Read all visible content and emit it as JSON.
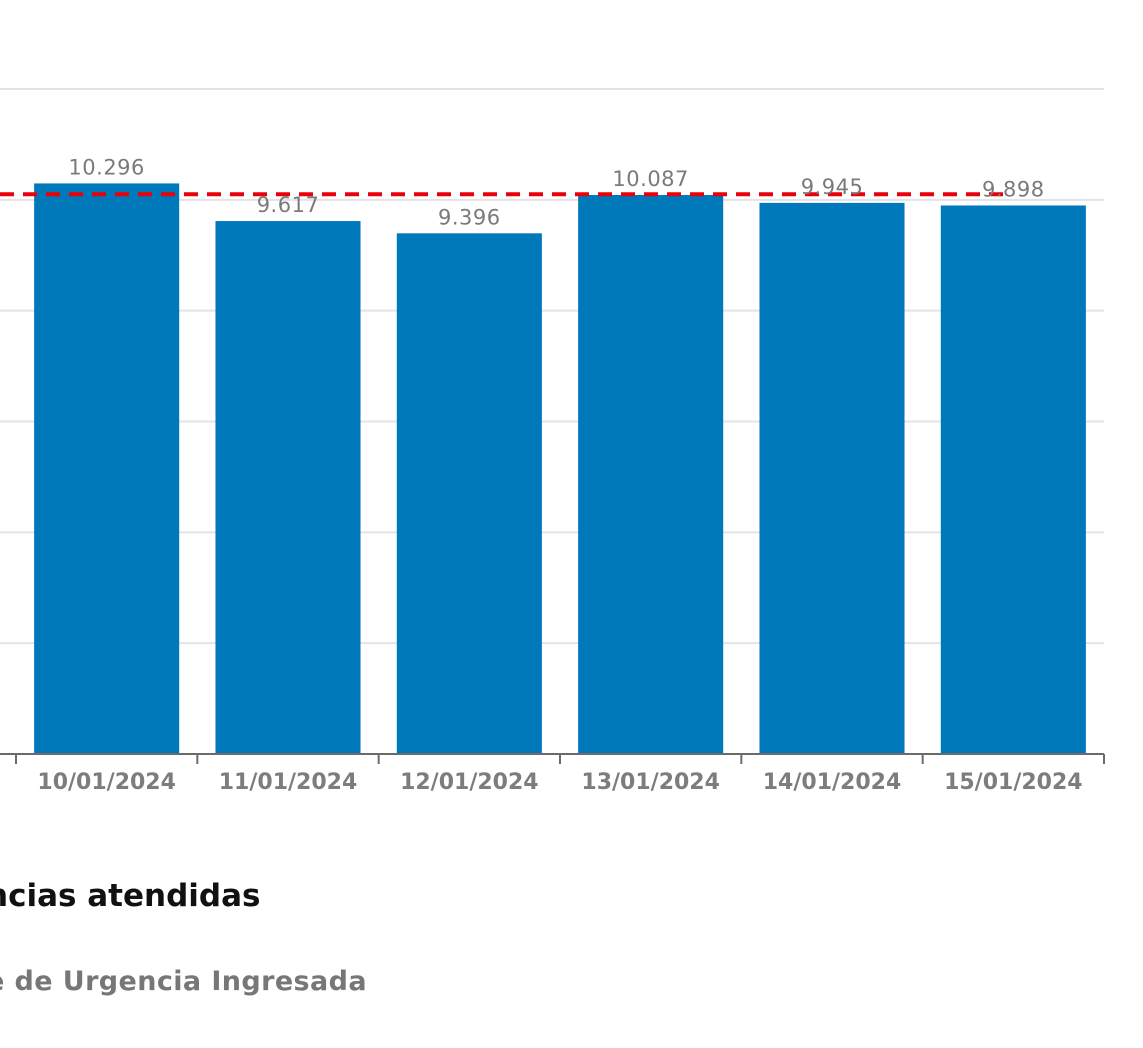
{
  "chart_data": {
    "type": "bar",
    "categories": [
      "10/01/2024",
      "11/01/2024",
      "12/01/2024",
      "13/01/2024",
      "14/01/2024",
      "15/01/2024"
    ],
    "values": [
      10296,
      9617,
      9396,
      10087,
      9945,
      9898
    ],
    "value_labels": [
      "10.296",
      "9.617",
      "9.396",
      "10.087",
      "9.945",
      "9.898"
    ],
    "reference_line": {
      "value": 10100,
      "style": "dashed",
      "color": "#e8000b"
    },
    "ylim": [
      0,
      12000
    ],
    "grid": true,
    "colors": {
      "bar": "#0079bb"
    }
  },
  "legend": {
    "title": "ncias atendidas",
    "subtitle": "e de Urgencia Ingresada"
  }
}
